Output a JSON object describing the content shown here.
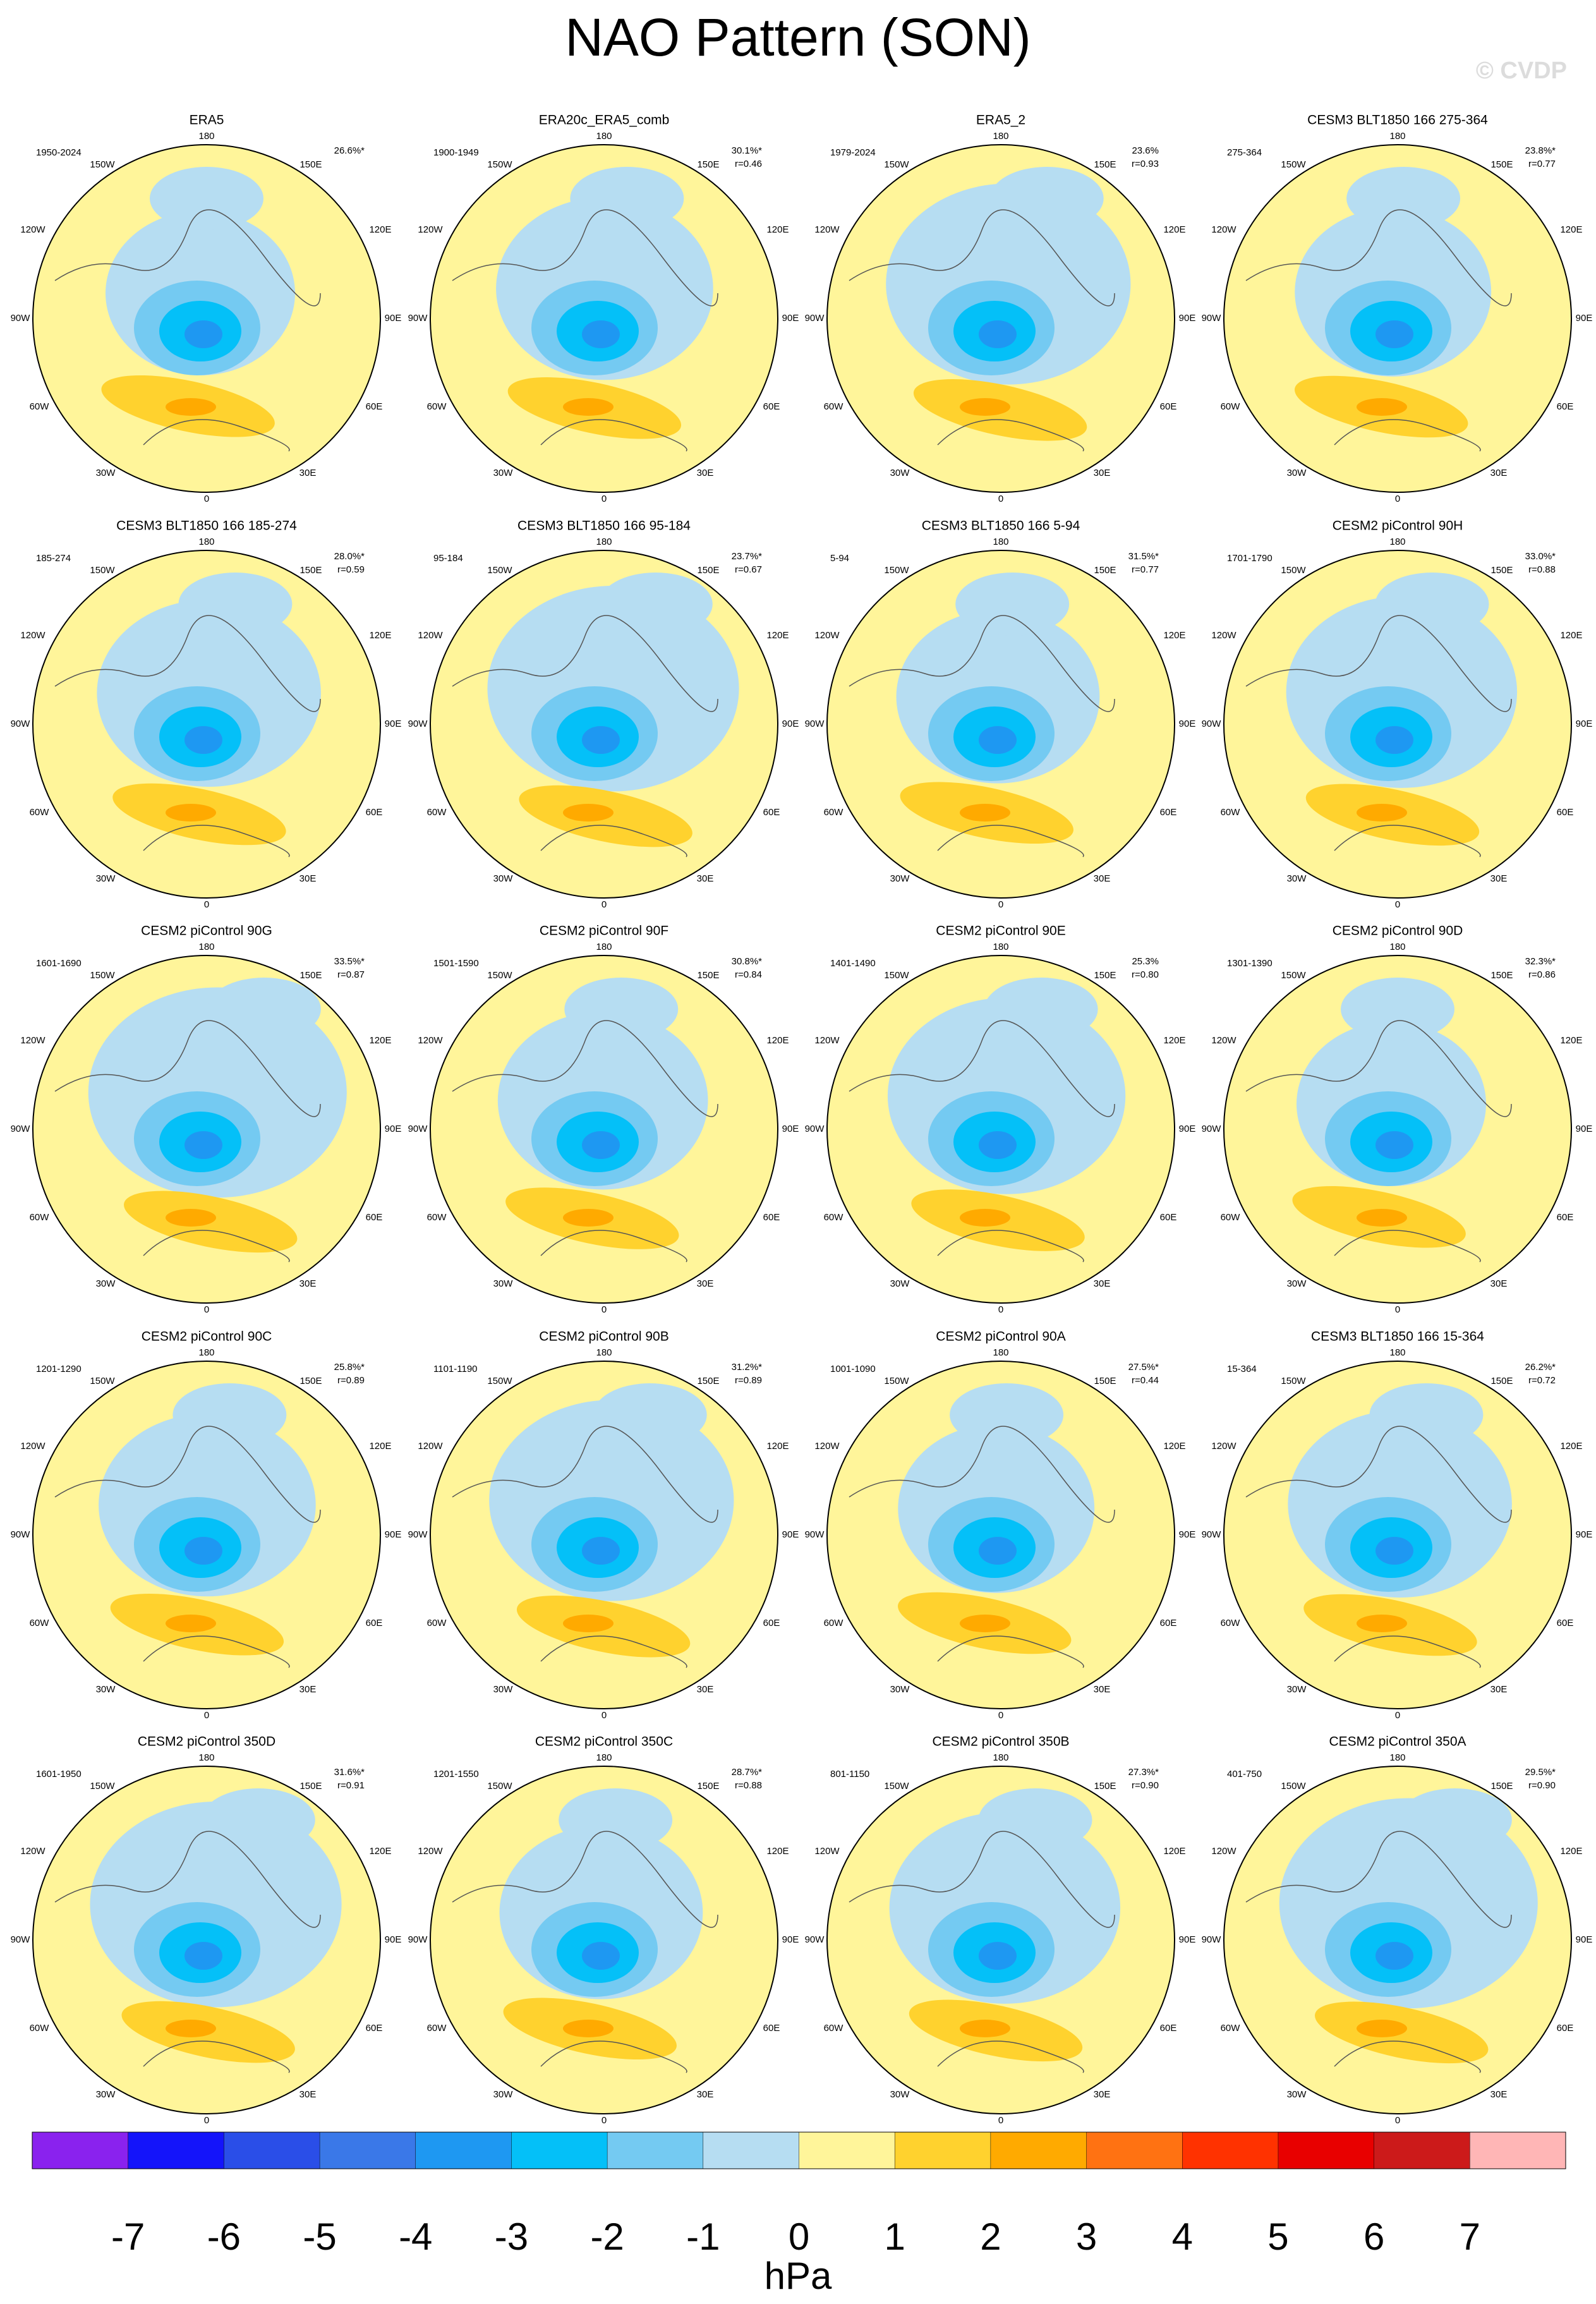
{
  "title": "NAO Pattern (SON)",
  "watermark": "© CVDP",
  "lon_labels": [
    "180",
    "150W",
    "150E",
    "120W",
    "120E",
    "90W",
    "90E",
    "60W",
    "60E",
    "30W",
    "30E",
    "0"
  ],
  "panels": [
    {
      "title": "ERA5",
      "period": "1950-2024",
      "pct": "26.6%*"
    },
    {
      "title": "ERA20c_ERA5_comb",
      "period": "1900-1949",
      "pct": "30.1%*",
      "r": "r=0.46"
    },
    {
      "title": "ERA5_2",
      "period": "1979-2024",
      "pct": "23.6%",
      "r": "r=0.93"
    },
    {
      "title": "CESM3 BLT1850 166 275-364",
      "period": "275-364",
      "pct": "23.8%*",
      "r": "r=0.77"
    },
    {
      "title": "CESM3 BLT1850 166 185-274",
      "period": "185-274",
      "pct": "28.0%*",
      "r": "r=0.59"
    },
    {
      "title": "CESM3 BLT1850 166 95-184",
      "period": "95-184",
      "pct": "23.7%*",
      "r": "r=0.67"
    },
    {
      "title": "CESM3 BLT1850 166 5-94",
      "period": "5-94",
      "pct": "31.5%*",
      "r": "r=0.77"
    },
    {
      "title": "CESM2 piControl 90H",
      "period": "1701-1790",
      "pct": "33.0%*",
      "r": "r=0.88"
    },
    {
      "title": "CESM2 piControl 90G",
      "period": "1601-1690",
      "pct": "33.5%*",
      "r": "r=0.87"
    },
    {
      "title": "CESM2 piControl 90F",
      "period": "1501-1590",
      "pct": "30.8%*",
      "r": "r=0.84"
    },
    {
      "title": "CESM2 piControl 90E",
      "period": "1401-1490",
      "pct": "25.3%",
      "r": "r=0.80"
    },
    {
      "title": "CESM2 piControl 90D",
      "period": "1301-1390",
      "pct": "32.3%*",
      "r": "r=0.86"
    },
    {
      "title": "CESM2 piControl 90C",
      "period": "1201-1290",
      "pct": "25.8%*",
      "r": "r=0.89"
    },
    {
      "title": "CESM2 piControl 90B",
      "period": "1101-1190",
      "pct": "31.2%*",
      "r": "r=0.89"
    },
    {
      "title": "CESM2 piControl 90A",
      "period": "1001-1090",
      "pct": "27.5%*",
      "r": "r=0.44"
    },
    {
      "title": "CESM3 BLT1850 166 15-364",
      "period": "15-364",
      "pct": "26.2%*",
      "r": "r=0.72"
    },
    {
      "title": "CESM2 piControl 350D",
      "period": "1601-1950",
      "pct": "31.6%*",
      "r": "r=0.91"
    },
    {
      "title": "CESM2 piControl 350C",
      "period": "1201-1550",
      "pct": "28.7%*",
      "r": "r=0.88"
    },
    {
      "title": "CESM2 piControl 350B",
      "period": "801-1150",
      "pct": "27.3%*",
      "r": "r=0.90"
    },
    {
      "title": "CESM2 piControl 350A",
      "period": "401-750",
      "pct": "29.5%*",
      "r": "r=0.90"
    }
  ],
  "colorbar": {
    "levels": [
      -7,
      -6,
      -5,
      -4,
      -3,
      -2,
      -1,
      0,
      1,
      2,
      3,
      4,
      5,
      6,
      7
    ],
    "colors": [
      "#8a22ee",
      "#1414fa",
      "#2a4ee8",
      "#3a78e8",
      "#1e98f2",
      "#04c0f8",
      "#74caf2",
      "#b6ddf2",
      "#fff59a",
      "#ffd22e",
      "#ffaa00",
      "#ff7212",
      "#ff3200",
      "#e80000",
      "#cc1a1a",
      "#ffb6b6"
    ],
    "label": "hPa"
  }
}
